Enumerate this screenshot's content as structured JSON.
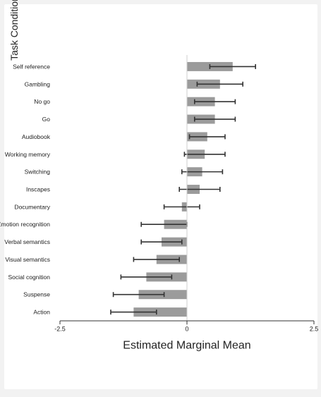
{
  "chart_data": {
    "type": "bar",
    "orientation": "vertical",
    "rotated_image": "90deg-clockwise",
    "categories": [
      "Self reference",
      "Gambling",
      "No go",
      "Go",
      "Audiobook",
      "Working memory",
      "Switching",
      "Inscapes",
      "Documentary",
      "Emotion recognition",
      "Verbal semantics",
      "Visual semantics",
      "Social cognition",
      "Suspense",
      "Action"
    ],
    "series": [
      {
        "values": [
          0.9,
          0.65,
          0.55,
          0.55,
          0.4,
          0.35,
          0.3,
          0.25,
          -0.1,
          -0.45,
          -0.5,
          -0.6,
          -0.8,
          -0.95,
          -1.05
        ],
        "error": [
          0.45,
          0.45,
          0.4,
          0.4,
          0.35,
          0.4,
          0.4,
          0.4,
          0.35,
          0.45,
          0.4,
          0.45,
          0.5,
          0.5,
          0.45
        ]
      }
    ],
    "xlabel": "Task Condition",
    "ylabel": "Estimated Marginal Mean",
    "ylim": [
      -2.5,
      2.5
    ],
    "yticks": [
      "2.5",
      "0",
      "-2.5"
    ],
    "bar_color": "#9b9b9b",
    "errorbar_color": "#333333"
  }
}
